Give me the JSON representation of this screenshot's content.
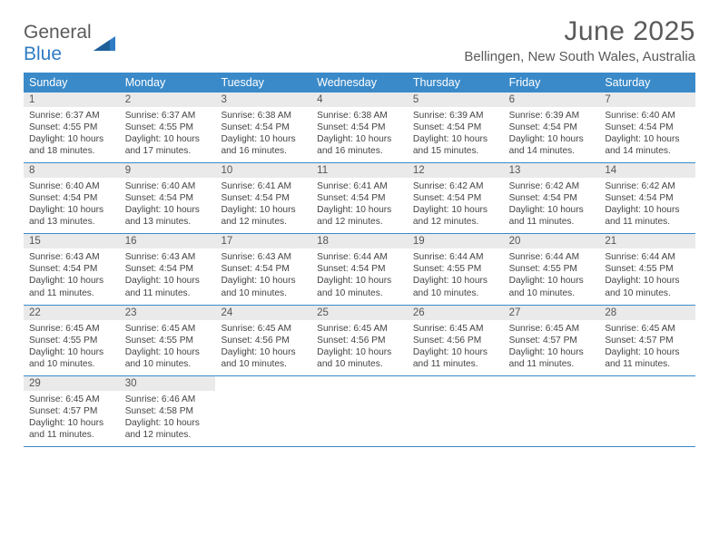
{
  "brand": {
    "part1": "General",
    "part2": "Blue"
  },
  "title": "June 2025",
  "location": "Bellingen, New South Wales, Australia",
  "colors": {
    "header_bg": "#3a8ac9",
    "header_text": "#ffffff",
    "daynum_bg": "#eaeaea",
    "border": "#3a8ac9",
    "text": "#444444",
    "brand_blue": "#2f7cc4",
    "brand_gray": "#5a5a5a",
    "page_bg": "#ffffff"
  },
  "days_of_week": [
    "Sunday",
    "Monday",
    "Tuesday",
    "Wednesday",
    "Thursday",
    "Friday",
    "Saturday"
  ],
  "weeks": [
    [
      {
        "n": "1",
        "sunrise": "Sunrise: 6:37 AM",
        "sunset": "Sunset: 4:55 PM",
        "day1": "Daylight: 10 hours",
        "day2": "and 18 minutes."
      },
      {
        "n": "2",
        "sunrise": "Sunrise: 6:37 AM",
        "sunset": "Sunset: 4:55 PM",
        "day1": "Daylight: 10 hours",
        "day2": "and 17 minutes."
      },
      {
        "n": "3",
        "sunrise": "Sunrise: 6:38 AM",
        "sunset": "Sunset: 4:54 PM",
        "day1": "Daylight: 10 hours",
        "day2": "and 16 minutes."
      },
      {
        "n": "4",
        "sunrise": "Sunrise: 6:38 AM",
        "sunset": "Sunset: 4:54 PM",
        "day1": "Daylight: 10 hours",
        "day2": "and 16 minutes."
      },
      {
        "n": "5",
        "sunrise": "Sunrise: 6:39 AM",
        "sunset": "Sunset: 4:54 PM",
        "day1": "Daylight: 10 hours",
        "day2": "and 15 minutes."
      },
      {
        "n": "6",
        "sunrise": "Sunrise: 6:39 AM",
        "sunset": "Sunset: 4:54 PM",
        "day1": "Daylight: 10 hours",
        "day2": "and 14 minutes."
      },
      {
        "n": "7",
        "sunrise": "Sunrise: 6:40 AM",
        "sunset": "Sunset: 4:54 PM",
        "day1": "Daylight: 10 hours",
        "day2": "and 14 minutes."
      }
    ],
    [
      {
        "n": "8",
        "sunrise": "Sunrise: 6:40 AM",
        "sunset": "Sunset: 4:54 PM",
        "day1": "Daylight: 10 hours",
        "day2": "and 13 minutes."
      },
      {
        "n": "9",
        "sunrise": "Sunrise: 6:40 AM",
        "sunset": "Sunset: 4:54 PM",
        "day1": "Daylight: 10 hours",
        "day2": "and 13 minutes."
      },
      {
        "n": "10",
        "sunrise": "Sunrise: 6:41 AM",
        "sunset": "Sunset: 4:54 PM",
        "day1": "Daylight: 10 hours",
        "day2": "and 12 minutes."
      },
      {
        "n": "11",
        "sunrise": "Sunrise: 6:41 AM",
        "sunset": "Sunset: 4:54 PM",
        "day1": "Daylight: 10 hours",
        "day2": "and 12 minutes."
      },
      {
        "n": "12",
        "sunrise": "Sunrise: 6:42 AM",
        "sunset": "Sunset: 4:54 PM",
        "day1": "Daylight: 10 hours",
        "day2": "and 12 minutes."
      },
      {
        "n": "13",
        "sunrise": "Sunrise: 6:42 AM",
        "sunset": "Sunset: 4:54 PM",
        "day1": "Daylight: 10 hours",
        "day2": "and 11 minutes."
      },
      {
        "n": "14",
        "sunrise": "Sunrise: 6:42 AM",
        "sunset": "Sunset: 4:54 PM",
        "day1": "Daylight: 10 hours",
        "day2": "and 11 minutes."
      }
    ],
    [
      {
        "n": "15",
        "sunrise": "Sunrise: 6:43 AM",
        "sunset": "Sunset: 4:54 PM",
        "day1": "Daylight: 10 hours",
        "day2": "and 11 minutes."
      },
      {
        "n": "16",
        "sunrise": "Sunrise: 6:43 AM",
        "sunset": "Sunset: 4:54 PM",
        "day1": "Daylight: 10 hours",
        "day2": "and 11 minutes."
      },
      {
        "n": "17",
        "sunrise": "Sunrise: 6:43 AM",
        "sunset": "Sunset: 4:54 PM",
        "day1": "Daylight: 10 hours",
        "day2": "and 10 minutes."
      },
      {
        "n": "18",
        "sunrise": "Sunrise: 6:44 AM",
        "sunset": "Sunset: 4:54 PM",
        "day1": "Daylight: 10 hours",
        "day2": "and 10 minutes."
      },
      {
        "n": "19",
        "sunrise": "Sunrise: 6:44 AM",
        "sunset": "Sunset: 4:55 PM",
        "day1": "Daylight: 10 hours",
        "day2": "and 10 minutes."
      },
      {
        "n": "20",
        "sunrise": "Sunrise: 6:44 AM",
        "sunset": "Sunset: 4:55 PM",
        "day1": "Daylight: 10 hours",
        "day2": "and 10 minutes."
      },
      {
        "n": "21",
        "sunrise": "Sunrise: 6:44 AM",
        "sunset": "Sunset: 4:55 PM",
        "day1": "Daylight: 10 hours",
        "day2": "and 10 minutes."
      }
    ],
    [
      {
        "n": "22",
        "sunrise": "Sunrise: 6:45 AM",
        "sunset": "Sunset: 4:55 PM",
        "day1": "Daylight: 10 hours",
        "day2": "and 10 minutes."
      },
      {
        "n": "23",
        "sunrise": "Sunrise: 6:45 AM",
        "sunset": "Sunset: 4:55 PM",
        "day1": "Daylight: 10 hours",
        "day2": "and 10 minutes."
      },
      {
        "n": "24",
        "sunrise": "Sunrise: 6:45 AM",
        "sunset": "Sunset: 4:56 PM",
        "day1": "Daylight: 10 hours",
        "day2": "and 10 minutes."
      },
      {
        "n": "25",
        "sunrise": "Sunrise: 6:45 AM",
        "sunset": "Sunset: 4:56 PM",
        "day1": "Daylight: 10 hours",
        "day2": "and 10 minutes."
      },
      {
        "n": "26",
        "sunrise": "Sunrise: 6:45 AM",
        "sunset": "Sunset: 4:56 PM",
        "day1": "Daylight: 10 hours",
        "day2": "and 11 minutes."
      },
      {
        "n": "27",
        "sunrise": "Sunrise: 6:45 AM",
        "sunset": "Sunset: 4:57 PM",
        "day1": "Daylight: 10 hours",
        "day2": "and 11 minutes."
      },
      {
        "n": "28",
        "sunrise": "Sunrise: 6:45 AM",
        "sunset": "Sunset: 4:57 PM",
        "day1": "Daylight: 10 hours",
        "day2": "and 11 minutes."
      }
    ],
    [
      {
        "n": "29",
        "sunrise": "Sunrise: 6:45 AM",
        "sunset": "Sunset: 4:57 PM",
        "day1": "Daylight: 10 hours",
        "day2": "and 11 minutes."
      },
      {
        "n": "30",
        "sunrise": "Sunrise: 6:46 AM",
        "sunset": "Sunset: 4:58 PM",
        "day1": "Daylight: 10 hours",
        "day2": "and 12 minutes."
      },
      {
        "empty": true
      },
      {
        "empty": true
      },
      {
        "empty": true
      },
      {
        "empty": true
      },
      {
        "empty": true
      }
    ]
  ]
}
